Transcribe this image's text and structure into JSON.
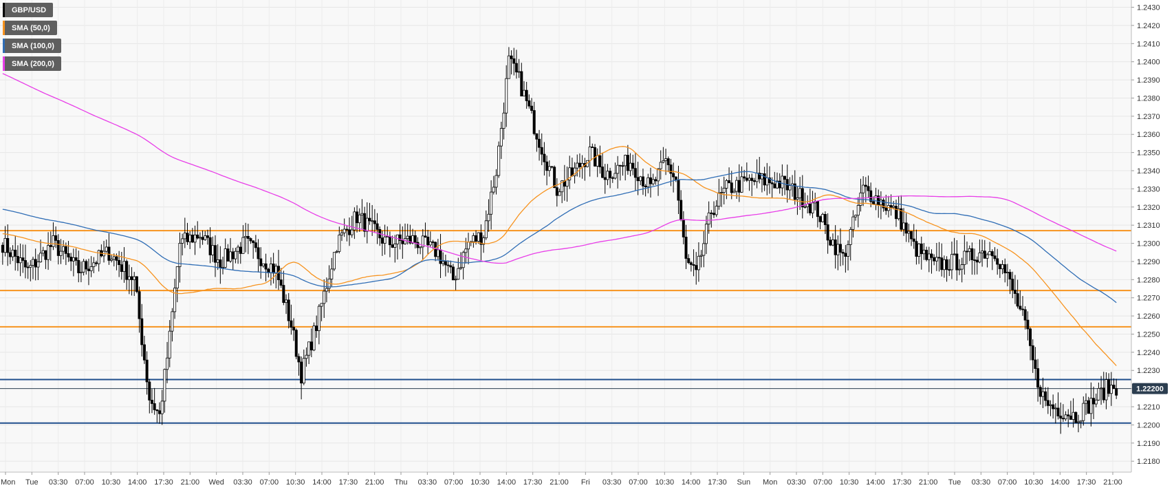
{
  "chart_data": {
    "type": "candlestick",
    "symbol": "GBP/USD",
    "current_price": "1.22200",
    "y_ticks": [
      "1.2430",
      "1.2420",
      "1.2410",
      "1.2400",
      "1.2390",
      "1.2380",
      "1.2370",
      "1.2360",
      "1.2350",
      "1.2340",
      "1.2330",
      "1.2320",
      "1.2310",
      "1.2300",
      "1.2290",
      "1.2280",
      "1.2270",
      "1.2260",
      "1.2250",
      "1.2240",
      "1.2230",
      "1.2220",
      "1.2210",
      "1.2200",
      "1.2190",
      "1.2180"
    ],
    "ylim": [
      1.2174,
      1.2434
    ],
    "x_ticks": [
      "Mon",
      "Tue",
      "03:30",
      "07:00",
      "10:30",
      "14:00",
      "17:30",
      "21:00",
      "Wed",
      "03:30",
      "07:00",
      "10:30",
      "14:00",
      "17:30",
      "21:00",
      "Thu",
      "03:30",
      "07:00",
      "10:30",
      "14:00",
      "17:30",
      "21:00",
      "Fri",
      "03:30",
      "07:00",
      "10:30",
      "14:00",
      "17:30",
      "Sun",
      "Mon",
      "03:30",
      "07:00",
      "10:30",
      "14:00",
      "17:30",
      "21:00",
      "Tue",
      "03:30",
      "07:00",
      "10:30",
      "14:00",
      "17:30",
      "21:00"
    ],
    "series": [
      {
        "name": "SMA (50,0)",
        "color": "#f7931e"
      },
      {
        "name": "SMA (100,0)",
        "color": "#2f6db5"
      },
      {
        "name": "SMA (200,0)",
        "color": "#e83ee8"
      }
    ],
    "symbol_color": "#000000",
    "resistance_levels": [
      1.2307,
      1.2274,
      1.2254
    ],
    "support_levels": [
      1.2225,
      1.2201
    ],
    "level_colors": {
      "resistance": "#f7931e",
      "support": "#1f4e8c"
    },
    "price_anchors": [
      [
        0,
        1.23
      ],
      [
        10,
        1.2285
      ],
      [
        20,
        1.23
      ],
      [
        30,
        1.2285
      ],
      [
        42,
        1.2295
      ],
      [
        52,
        1.228
      ],
      [
        58,
        1.2215
      ],
      [
        62,
        1.2205
      ],
      [
        66,
        1.2248
      ],
      [
        70,
        1.23
      ],
      [
        78,
        1.2305
      ],
      [
        86,
        1.229
      ],
      [
        96,
        1.23
      ],
      [
        108,
        1.2285
      ],
      [
        114,
        1.2255
      ],
      [
        118,
        1.2228
      ],
      [
        124,
        1.2255
      ],
      [
        132,
        1.23
      ],
      [
        140,
        1.2315
      ],
      [
        152,
        1.23
      ],
      [
        162,
        1.2302
      ],
      [
        172,
        1.2295
      ],
      [
        178,
        1.228
      ],
      [
        184,
        1.23
      ],
      [
        190,
        1.2305
      ],
      [
        195,
        1.234
      ],
      [
        200,
        1.24
      ],
      [
        204,
        1.239
      ],
      [
        210,
        1.2365
      ],
      [
        215,
        1.2345
      ],
      [
        219,
        1.233
      ],
      [
        225,
        1.2338
      ],
      [
        232,
        1.235
      ],
      [
        238,
        1.2338
      ],
      [
        248,
        1.2345
      ],
      [
        256,
        1.233
      ],
      [
        262,
        1.2345
      ],
      [
        266,
        1.2335
      ],
      [
        270,
        1.229
      ],
      [
        274,
        1.2282
      ],
      [
        280,
        1.2318
      ],
      [
        286,
        1.233
      ],
      [
        298,
        1.2335
      ],
      [
        308,
        1.2333
      ],
      [
        316,
        1.2325
      ],
      [
        322,
        1.2318
      ],
      [
        326,
        1.2305
      ],
      [
        332,
        1.2292
      ],
      [
        336,
        1.231
      ],
      [
        340,
        1.233
      ],
      [
        348,
        1.2322
      ],
      [
        354,
        1.2315
      ],
      [
        360,
        1.2298
      ],
      [
        368,
        1.2288
      ],
      [
        378,
        1.229
      ],
      [
        386,
        1.2295
      ],
      [
        392,
        1.2296
      ],
      [
        398,
        1.2278
      ],
      [
        404,
        1.2255
      ],
      [
        408,
        1.2228
      ],
      [
        412,
        1.2212
      ],
      [
        418,
        1.2208
      ],
      [
        424,
        1.2205
      ],
      [
        430,
        1.2212
      ],
      [
        436,
        1.222
      ],
      [
        440,
        1.2221
      ]
    ]
  }
}
